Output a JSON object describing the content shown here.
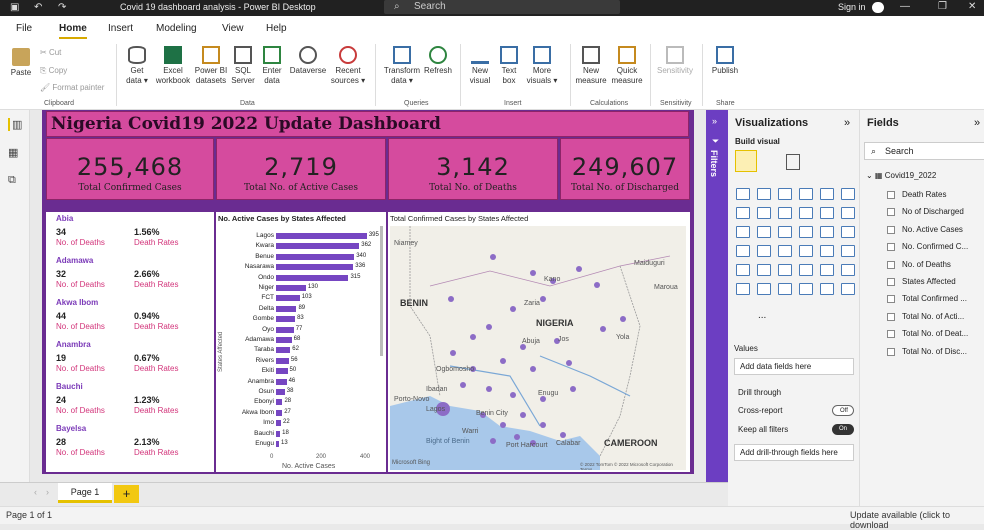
{
  "app": {
    "title": "Covid 19 dashboard analysis - Power BI Desktop",
    "search": "Search",
    "sign_in": "Sign in"
  },
  "menu": [
    "File",
    "Home",
    "Insert",
    "Modeling",
    "View",
    "Help"
  ],
  "ribbon": {
    "clipboard": [
      "Paste",
      "Cut",
      "Copy",
      "Format painter"
    ],
    "data": [
      "Get data",
      "Excel workbook",
      "Power BI datasets",
      "SQL Server",
      "Enter data",
      "Dataverse",
      "Recent sources"
    ],
    "queries": [
      "Transform data",
      "Refresh"
    ],
    "insert": [
      "New visual",
      "Text box",
      "More visuals"
    ],
    "calc": [
      "New measure",
      "Quick measure"
    ],
    "sens": "Sensitivity",
    "share": "Publish",
    "groups": [
      "Clipboard",
      "Data",
      "Queries",
      "Insert",
      "Calculations",
      "Sensitivity",
      "Share"
    ]
  },
  "dashboard": {
    "title": "Nigeria Covid19  2022 Update Dashboard",
    "cards": [
      {
        "value": "255,468",
        "label": "Total Confirmed Cases"
      },
      {
        "value": "2,719",
        "label": "Total No. of Active Cases"
      },
      {
        "value": "3,142",
        "label": "Total No. of Deaths"
      },
      {
        "value": "249,607",
        "label": "Total No. of Discharged"
      }
    ],
    "states_table": {
      "death_label": "No. of Deaths",
      "rate_label": "Death Rates",
      "rows": [
        {
          "name": "Abia",
          "deaths": "34",
          "rate": "1.56%"
        },
        {
          "name": "Adamawa",
          "deaths": "32",
          "rate": "2.66%"
        },
        {
          "name": "Akwa Ibom",
          "deaths": "44",
          "rate": "0.94%"
        },
        {
          "name": "Anambra",
          "deaths": "19",
          "rate": "0.67%"
        },
        {
          "name": "Bauchi",
          "deaths": "24",
          "rate": "1.23%"
        },
        {
          "name": "Bayelsa",
          "deaths": "28",
          "rate": "2.13%"
        }
      ]
    },
    "bar_chart": {
      "title": "No. Active Cases by States Affected",
      "ylabel": "States Affected",
      "xlabel": "No. Active Cases",
      "ticks": [
        "0",
        "200",
        "400"
      ]
    },
    "map": {
      "title": "Total Confirmed Cases by States Affected",
      "labels": [
        "NIGERIA",
        "BENIN",
        "CAMEROON",
        "Niamey",
        "Kano",
        "Abuja",
        "Ibadan",
        "Lagos",
        "Benin City",
        "Port Harcourt",
        "Ogbomosho",
        "Bight of Benin",
        "Maroua",
        "Zaria",
        "Jos",
        "Enugu",
        "Calabar",
        "Yola",
        "Porto-Novo",
        "Warri",
        "Maiduguri"
      ],
      "footer": "Microsoft Bing",
      "copyright": "© 2022 TomTom © 2022 Microsoft Corporation Terms"
    }
  },
  "chart_data": {
    "type": "bar",
    "title": "No. Active Cases by States Affected",
    "xlabel": "No. Active Cases",
    "ylabel": "States Affected",
    "xlim": [
      0,
      400
    ],
    "categories": [
      "Lagos",
      "Kwara",
      "Benue",
      "Nasarawa",
      "Ondo",
      "Niger",
      "FCT",
      "Delta",
      "Gombe",
      "Oyo",
      "Adamawa",
      "Taraba",
      "Rivers",
      "Ekiti",
      "Anambra",
      "Osun",
      "Ebonyi",
      "Akwa Ibom",
      "Imo",
      "Bauchi",
      "Enugu"
    ],
    "values": [
      395,
      362,
      340,
      336,
      315,
      130,
      103,
      89,
      83,
      77,
      68,
      62,
      56,
      50,
      46,
      38,
      28,
      27,
      22,
      18,
      13
    ]
  },
  "visualizations": {
    "title": "Visualizations",
    "build": "Build visual",
    "values_label": "Values",
    "add_data": "Add data fields here",
    "drill_through": "Drill through",
    "cross_report": "Cross-report",
    "cross_state": "Off",
    "keep_filters": "Keep all filters",
    "keep_state": "On",
    "add_drill": "Add drill-through fields here",
    "more": "..."
  },
  "fields": {
    "title": "Fields",
    "search": "Search",
    "table": "Covid19_2022",
    "items": [
      "Death Rates",
      "No of Discharged",
      "No. Active Cases",
      "No. Confirmed C...",
      "No. of Deaths",
      "States Affected",
      "Total Confirmed ...",
      "Total No. of Acti...",
      "Total No. of Deat...",
      "Total No. of Disc..."
    ]
  },
  "filters_label": "Filters",
  "pages": {
    "current": "Page 1",
    "add": "+"
  },
  "status": {
    "page": "Page 1 of 1",
    "update": "Update available (click to download"
  }
}
